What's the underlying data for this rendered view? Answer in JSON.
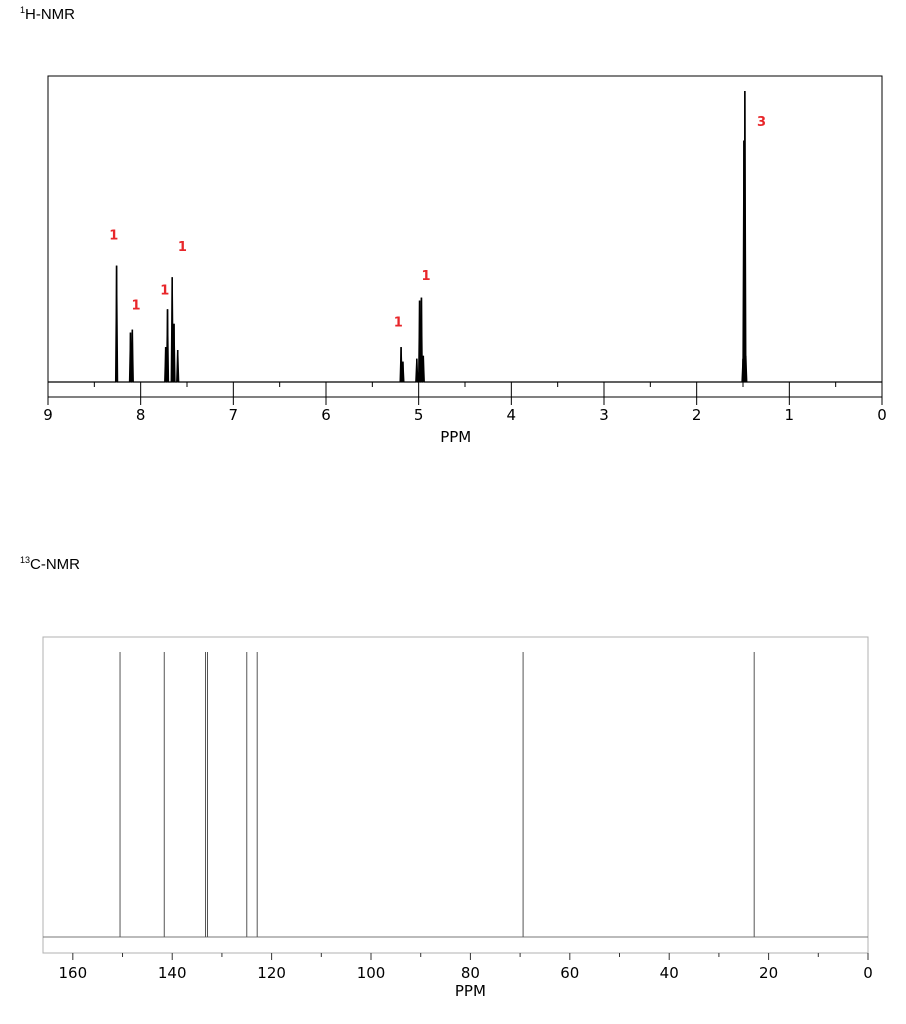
{
  "proton": {
    "title_sup": "1",
    "title_main": "H-NMR"
  },
  "carbon": {
    "title_sup": "13",
    "title_main": "C-NMR"
  },
  "colors": {
    "integral": "#e8262a",
    "line": "#000000",
    "frame": "#000000",
    "carbon_frame": "#b0b0b0"
  },
  "chart_data": [
    {
      "type": "line",
      "title": "¹H-NMR",
      "xlabel": "PPM",
      "ylabel": "",
      "xlim": [
        9,
        0
      ],
      "x_reversed": true,
      "ticks": [
        "9",
        "8",
        "7",
        "6",
        "5",
        "4",
        "3",
        "2",
        "1",
        "0"
      ],
      "tick_values": [
        9,
        8,
        7,
        6,
        5,
        4,
        3,
        2,
        1,
        0
      ],
      "grid": false,
      "peaks": [
        {
          "ppm": 8.26,
          "intensity": 0.4
        },
        {
          "ppm": 8.11,
          "intensity": 0.17
        },
        {
          "ppm": 8.09,
          "intensity": 0.18
        },
        {
          "ppm": 7.73,
          "intensity": 0.12
        },
        {
          "ppm": 7.71,
          "intensity": 0.25
        },
        {
          "ppm": 7.66,
          "intensity": 0.36
        },
        {
          "ppm": 7.64,
          "intensity": 0.2
        },
        {
          "ppm": 7.6,
          "intensity": 0.11
        },
        {
          "ppm": 5.19,
          "intensity": 0.12
        },
        {
          "ppm": 5.17,
          "intensity": 0.07
        },
        {
          "ppm": 5.02,
          "intensity": 0.08
        },
        {
          "ppm": 4.99,
          "intensity": 0.28
        },
        {
          "ppm": 4.97,
          "intensity": 0.29
        },
        {
          "ppm": 4.95,
          "intensity": 0.09
        },
        {
          "ppm": 1.5,
          "intensity": 0.08
        },
        {
          "ppm": 1.49,
          "intensity": 0.83
        },
        {
          "ppm": 1.48,
          "intensity": 1.0
        },
        {
          "ppm": 1.47,
          "intensity": 0.09
        }
      ],
      "integrals": [
        {
          "label": "1",
          "ppm": 8.29,
          "level": 0.49
        },
        {
          "label": "1",
          "ppm": 8.05,
          "level": 0.25
        },
        {
          "label": "1",
          "ppm": 7.74,
          "level": 0.3
        },
        {
          "label": "1",
          "ppm": 7.55,
          "level": 0.45
        },
        {
          "label": "1",
          "ppm": 5.22,
          "level": 0.19
        },
        {
          "label": "1",
          "ppm": 4.92,
          "level": 0.35
        },
        {
          "label": "3",
          "ppm": 1.3,
          "level": 0.88
        }
      ]
    },
    {
      "type": "bar",
      "title": "¹³C-NMR",
      "xlabel": "PPM",
      "ylabel": "",
      "xlim": [
        166,
        0
      ],
      "x_reversed": true,
      "ticks": [
        "160",
        "140",
        "120",
        "100",
        "80",
        "60",
        "40",
        "20",
        "0"
      ],
      "tick_values": [
        160,
        140,
        120,
        100,
        80,
        60,
        40,
        20,
        0
      ],
      "grid": false,
      "peaks": [
        150.5,
        141.6,
        133.3,
        132.9,
        125.0,
        122.9,
        69.4,
        22.9
      ]
    }
  ]
}
